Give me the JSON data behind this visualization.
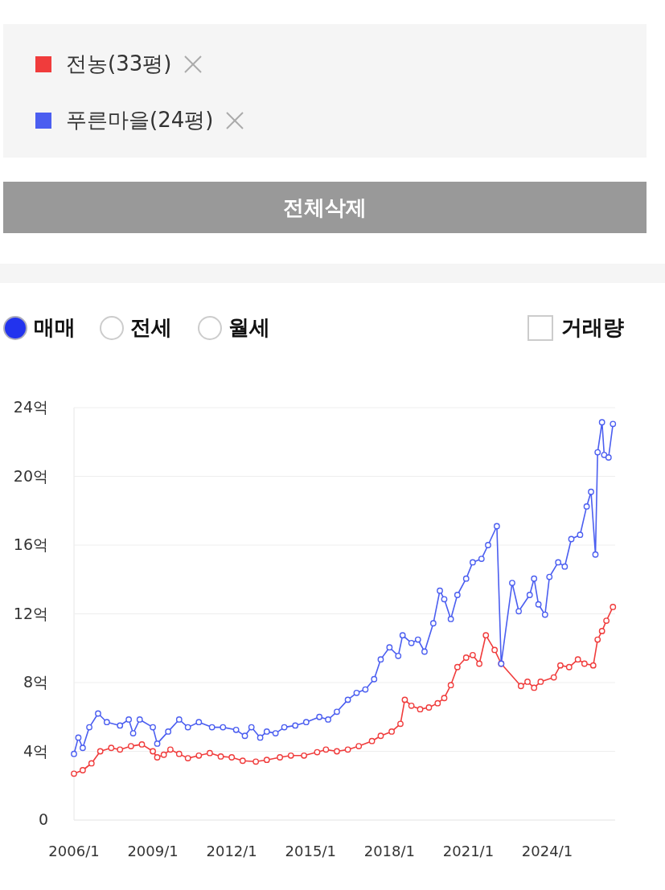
{
  "chart_data": {
    "type": "line",
    "legend": "top",
    "marker": "circle",
    "grid": "y",
    "annotations": [
      "전체삭제",
      "매매",
      "전세",
      "월세",
      "거래량"
    ],
    "ylim": [
      0,
      24
    ],
    "yticks": [
      0,
      {
        "value": 4,
        "label": "4억"
      },
      {
        "value": 8,
        "label": "8억"
      },
      {
        "value": 12,
        "label": "12억"
      },
      {
        "value": 16,
        "label": "16억"
      },
      {
        "value": 20,
        "label": "20억"
      },
      {
        "value": 24,
        "label": "24억"
      }
    ],
    "xlim": [
      "2006-01",
      "2026-08"
    ],
    "xticks": [
      {
        "value": "2006-01",
        "label": "2006/1"
      },
      {
        "value": "2009-01",
        "label": "2009/1"
      },
      {
        "value": "2012-01",
        "label": "2012/1"
      },
      {
        "value": "2015-01",
        "label": "2015/1"
      },
      {
        "value": "2018-01",
        "label": "2018/1"
      },
      {
        "value": "2021-01",
        "label": "2021/1"
      },
      {
        "value": "2024-01",
        "label": "2024/1"
      }
    ],
    "series": [
      {
        "name": "전농(33평)",
        "color": "#f03c3c",
        "x": [
          "2006-01",
          "2006-05",
          "2006-09",
          "2007-01",
          "2007-06",
          "2007-10",
          "2008-03",
          "2008-08",
          "2009-01",
          "2009-03",
          "2009-06",
          "2009-09",
          "2010-01",
          "2010-05",
          "2010-10",
          "2011-03",
          "2011-08",
          "2012-01",
          "2012-06",
          "2012-12",
          "2013-05",
          "2013-11",
          "2014-04",
          "2014-10",
          "2015-04",
          "2015-08",
          "2016-01",
          "2016-06",
          "2016-11",
          "2017-05",
          "2017-09",
          "2018-02",
          "2018-06",
          "2018-08",
          "2018-11",
          "2019-03",
          "2019-07",
          "2019-11",
          "2020-02",
          "2020-05",
          "2020-08",
          "2020-12",
          "2021-03",
          "2021-06",
          "2021-09",
          "2022-01",
          "2022-04",
          "2023-01",
          "2023-04",
          "2023-07",
          "2023-10",
          "2024-04",
          "2024-07",
          "2024-11",
          "2025-03",
          "2025-06",
          "2025-10",
          "2025-12",
          "2026-02",
          "2026-04",
          "2026-07"
        ],
        "values": [
          2.7,
          2.9,
          3.3,
          4.0,
          4.2,
          4.1,
          4.3,
          4.4,
          4.0,
          3.65,
          3.8,
          4.1,
          3.85,
          3.6,
          3.75,
          3.9,
          3.7,
          3.65,
          3.45,
          3.4,
          3.5,
          3.65,
          3.75,
          3.75,
          3.95,
          4.1,
          4.0,
          4.1,
          4.3,
          4.6,
          4.9,
          5.15,
          5.6,
          7.0,
          6.65,
          6.45,
          6.55,
          6.8,
          7.1,
          7.85,
          8.9,
          9.45,
          9.6,
          9.1,
          10.75,
          9.9,
          9.1,
          7.8,
          8.05,
          7.7,
          8.05,
          8.3,
          9.0,
          8.9,
          9.35,
          9.1,
          9.0,
          10.5,
          11.0,
          11.6,
          12.4
        ]
      },
      {
        "name": "푸른마을(24평)",
        "color": "#4b5ef0",
        "x": [
          "2006-01",
          "2006-03",
          "2006-05",
          "2006-08",
          "2006-12",
          "2007-04",
          "2007-10",
          "2008-02",
          "2008-04",
          "2008-07",
          "2009-01",
          "2009-03",
          "2009-08",
          "2010-01",
          "2010-05",
          "2010-10",
          "2011-04",
          "2011-09",
          "2012-03",
          "2012-07",
          "2012-10",
          "2013-02",
          "2013-05",
          "2013-09",
          "2014-01",
          "2014-06",
          "2014-11",
          "2015-05",
          "2015-09",
          "2016-01",
          "2016-06",
          "2016-10",
          "2017-02",
          "2017-06",
          "2017-09",
          "2018-01",
          "2018-05",
          "2018-07",
          "2018-11",
          "2019-02",
          "2019-05",
          "2019-09",
          "2019-12",
          "2020-02",
          "2020-05",
          "2020-08",
          "2020-12",
          "2021-03",
          "2021-07",
          "2021-10",
          "2022-02",
          "2022-04",
          "2022-09",
          "2022-12",
          "2023-05",
          "2023-07",
          "2023-09",
          "2023-12",
          "2024-02",
          "2024-06",
          "2024-09",
          "2024-12",
          "2025-04",
          "2025-07",
          "2025-09",
          "2025-11",
          "2025-12",
          "2026-02",
          "2026-03",
          "2026-05",
          "2026-07"
        ],
        "values": [
          3.85,
          4.8,
          4.2,
          5.4,
          6.2,
          5.7,
          5.5,
          5.85,
          5.05,
          5.85,
          5.4,
          4.45,
          5.15,
          5.85,
          5.4,
          5.7,
          5.4,
          5.4,
          5.25,
          4.9,
          5.4,
          4.8,
          5.15,
          5.05,
          5.4,
          5.5,
          5.7,
          6.0,
          5.85,
          6.3,
          7.0,
          7.4,
          7.6,
          8.2,
          9.35,
          10.05,
          9.55,
          10.75,
          10.3,
          10.5,
          9.8,
          11.45,
          13.35,
          12.85,
          11.7,
          13.1,
          14.05,
          15.0,
          15.2,
          16.0,
          17.1,
          9.1,
          13.8,
          12.15,
          13.1,
          14.05,
          12.55,
          11.95,
          14.15,
          15.0,
          14.75,
          16.35,
          16.6,
          18.25,
          19.1,
          15.45,
          21.4,
          23.15,
          21.25,
          21.1,
          23.05
        ]
      }
    ]
  }
}
